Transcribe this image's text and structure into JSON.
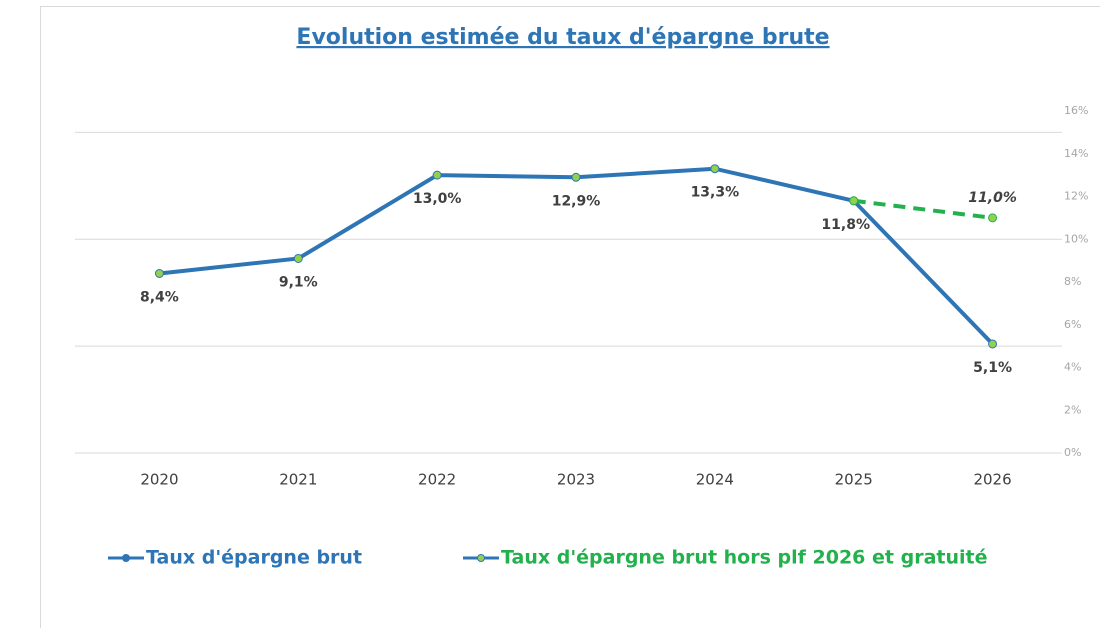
{
  "chart_data": {
    "type": "line",
    "title": "Evolution estimée du taux d'épargne brute",
    "categories": [
      "2020",
      "2021",
      "2022",
      "2023",
      "2024",
      "2025",
      "2026"
    ],
    "series": [
      {
        "name": "Taux d'épargne brut",
        "color": "#2e75b6",
        "marker_color": "#92d050",
        "dashed": false,
        "values": [
          8.4,
          9.1,
          13.0,
          12.9,
          13.3,
          11.8,
          5.1
        ],
        "value_labels": [
          "8,4%",
          "9,1%",
          "13,0%",
          "12,9%",
          "13,3%",
          "11,8%",
          "5,1%"
        ]
      },
      {
        "name": "Taux d'épargne brut hors plf 2026 et gratuité",
        "color": "#22b14c",
        "marker_color": "#92d050",
        "dashed": true,
        "values": [
          null,
          null,
          null,
          null,
          null,
          11.8,
          11.0
        ],
        "value_labels": [
          null,
          null,
          null,
          null,
          null,
          null,
          "11,0%"
        ]
      }
    ],
    "ylim": [
      0,
      16
    ],
    "yticks": [
      {
        "value": 0,
        "label": "0%"
      },
      {
        "value": 2,
        "label": "2%"
      },
      {
        "value": 4,
        "label": "4%"
      },
      {
        "value": 6,
        "label": "6%"
      },
      {
        "value": 8,
        "label": "8%"
      },
      {
        "value": 10,
        "label": "10%"
      },
      {
        "value": 12,
        "label": "12%"
      },
      {
        "value": 14,
        "label": "14%"
      },
      {
        "value": 16,
        "label": "16%"
      }
    ],
    "ygrid": [
      0,
      5,
      10,
      15
    ],
    "yaxis_side": "right",
    "legend": "bottom"
  }
}
